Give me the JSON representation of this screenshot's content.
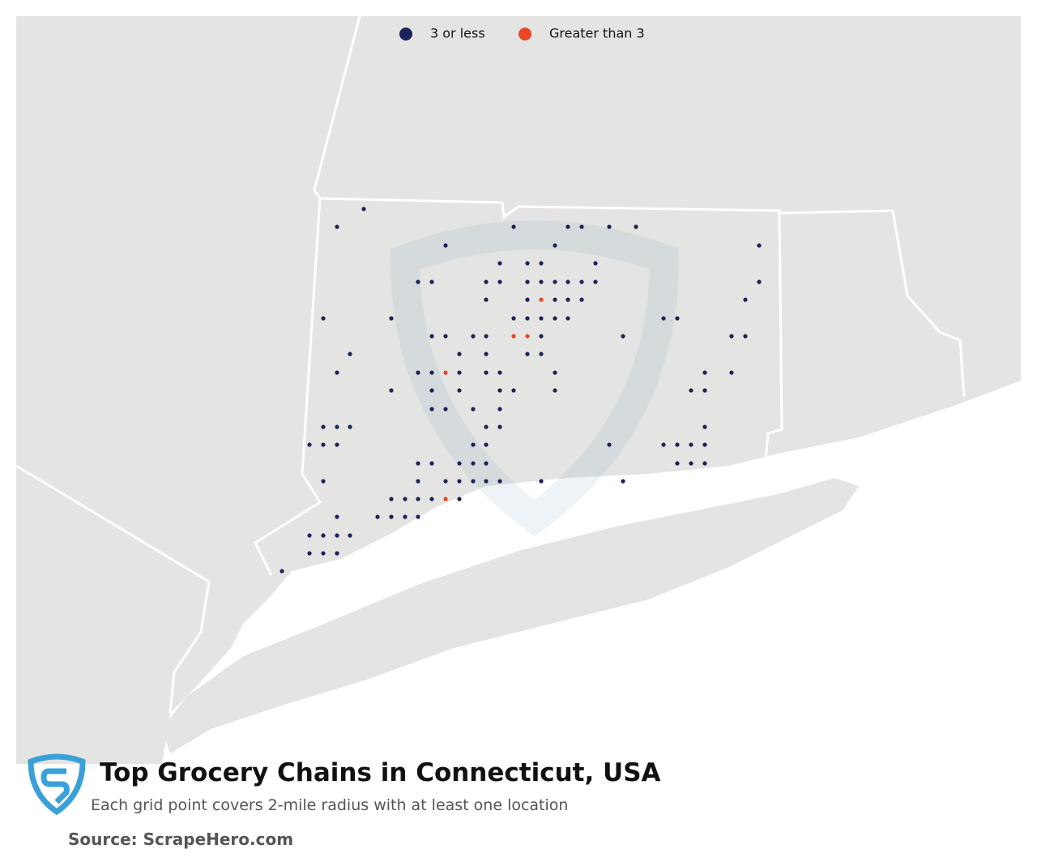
{
  "legend": [
    {
      "label": "3 or less",
      "color": "#1b2257"
    },
    {
      "label": "Greater than 3",
      "color": "#e8452a"
    }
  ],
  "header": {
    "title": "Top Grocery Chains in Connecticut, USA",
    "subtitle": "Each grid point covers 2-mile radius with at least one location"
  },
  "footer": {
    "source": "Source: ScrapeHero.com"
  }
}
